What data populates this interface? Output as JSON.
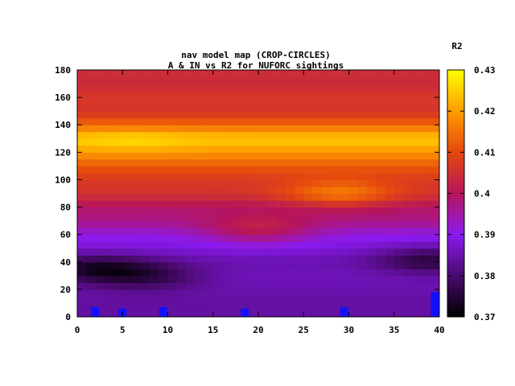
{
  "chart_data": {
    "type": "heatmap",
    "title_line1": "nav model map (CROP-CIRCLES)",
    "title_line2": "A & IN vs R2 for NUFORC sightings",
    "colorbar_label": "R2",
    "xlim": [
      0,
      40
    ],
    "ylim": [
      0,
      180
    ],
    "x_ticks": [
      "0",
      "5",
      "10",
      "15",
      "20",
      "25",
      "30",
      "35",
      "40"
    ],
    "y_ticks": [
      "0",
      "20",
      "40",
      "60",
      "80",
      "100",
      "120",
      "140",
      "160",
      "180"
    ],
    "colorbar_range": [
      0.37,
      0.43
    ],
    "colorbar_ticks": [
      "0.37",
      "0.38",
      "0.39",
      "0.4",
      "0.41",
      "0.42",
      "0.43"
    ],
    "colormap": "gnuplot-hot (black-purple-red-orange-yellow)",
    "band_values_by_y": [
      {
        "y": 180,
        "r2": 0.405
      },
      {
        "y": 170,
        "r2": 0.404
      },
      {
        "y": 160,
        "r2": 0.407
      },
      {
        "y": 150,
        "r2": 0.406
      },
      {
        "y": 140,
        "r2": 0.414
      },
      {
        "y": 130,
        "r2": 0.425
      },
      {
        "y": 120,
        "r2": 0.419
      },
      {
        "y": 110,
        "r2": 0.412
      },
      {
        "y": 100,
        "r2": 0.407
      },
      {
        "y": 90,
        "r2": 0.406
      },
      {
        "y": 80,
        "r2": 0.399
      },
      {
        "y": 70,
        "r2": 0.397
      },
      {
        "y": 60,
        "r2": 0.391
      },
      {
        "y": 50,
        "r2": 0.388
      },
      {
        "y": 40,
        "r2": 0.385
      },
      {
        "y": 30,
        "r2": 0.386
      },
      {
        "y": 20,
        "r2": 0.385
      },
      {
        "y": 10,
        "r2": 0.384
      },
      {
        "y": 0,
        "r2": 0.384
      }
    ],
    "features": [
      {
        "x": 29,
        "y": 90,
        "r2": 0.416
      },
      {
        "x": 6,
        "y": 128,
        "r2": 0.426
      },
      {
        "x": 20,
        "y": 63,
        "r2": 0.401
      },
      {
        "x": 2,
        "y": 35,
        "r2": 0.374
      },
      {
        "x": 8,
        "y": 30,
        "r2": 0.378
      },
      {
        "x": 39,
        "y": 42,
        "r2": 0.376
      }
    ],
    "markers": [
      {
        "x": 2,
        "y": 7
      },
      {
        "x": 5,
        "y": 6
      },
      {
        "x": 9.5,
        "y": 7
      },
      {
        "x": 18.5,
        "y": 6
      },
      {
        "x": 29.5,
        "y": 7
      },
      {
        "x": 39.5,
        "y": 18
      }
    ],
    "colors": {
      "marker": "#1010ff",
      "frame": "#000000"
    }
  }
}
